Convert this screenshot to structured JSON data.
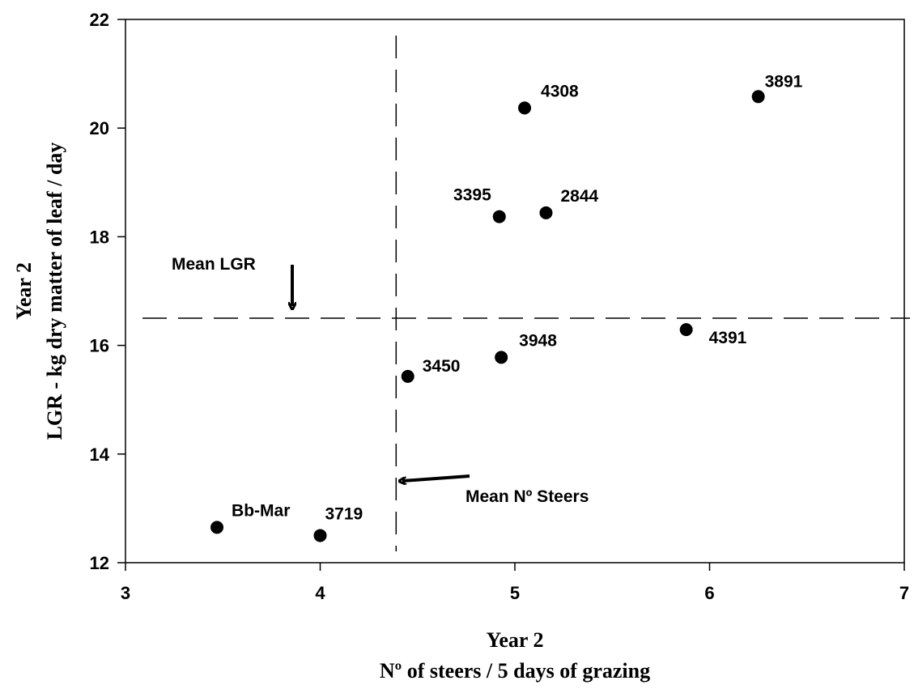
{
  "chart_data": {
    "type": "scatter",
    "xlabel": [
      "Year 2",
      "Nº of steers /  5 days of grazing"
    ],
    "ylabel": [
      "Year 2",
      "LGR - kg dry matter of leaf / day"
    ],
    "xlim": [
      3,
      7
    ],
    "ylim": [
      12,
      22
    ],
    "xticks": [
      "3",
      "4",
      "5",
      "6",
      "7"
    ],
    "yticks": [
      "12",
      "14",
      "16",
      "18",
      "20",
      "22"
    ],
    "points": [
      {
        "label": "Bb-Mar",
        "x": 3.47,
        "y": 12.65
      },
      {
        "label": "3719",
        "x": 4.0,
        "y": 12.5
      },
      {
        "label": "3450",
        "x": 4.45,
        "y": 15.43
      },
      {
        "label": "3948",
        "x": 4.93,
        "y": 15.78
      },
      {
        "label": "3395",
        "x": 4.92,
        "y": 18.37
      },
      {
        "label": "2844",
        "x": 5.16,
        "y": 18.44
      },
      {
        "label": "4308",
        "x": 5.05,
        "y": 20.37
      },
      {
        "label": "3891",
        "x": 6.25,
        "y": 20.58
      },
      {
        "label": "4391",
        "x": 5.88,
        "y": 16.29
      }
    ],
    "reference_lines": {
      "mean_lgr": 16.5,
      "mean_steers": 4.39
    },
    "annotations": {
      "mean_lgr": "Mean LGR",
      "mean_steers": "Mean Nº Steers"
    },
    "grid": false,
    "legend": "none"
  }
}
